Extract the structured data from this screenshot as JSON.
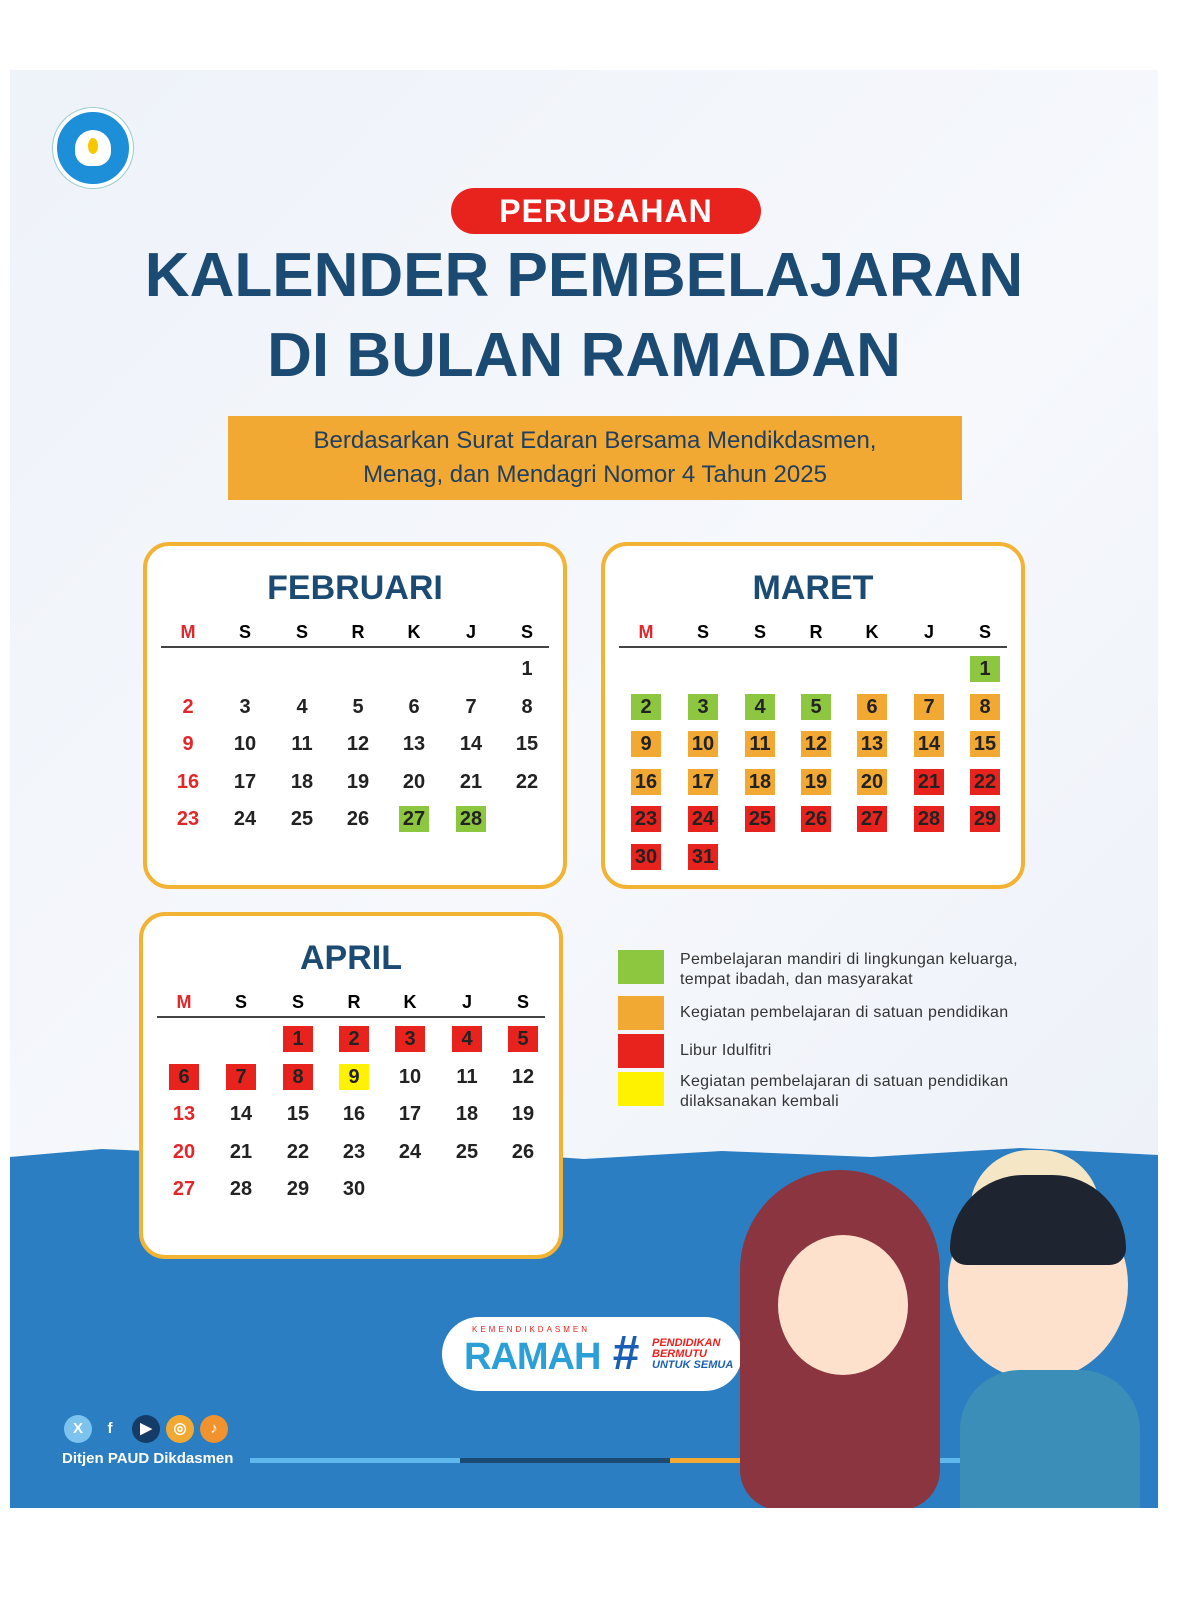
{
  "header": {
    "badge": "PERUBAHAN",
    "title_line1": "KALENDER PEMBELAJARAN",
    "title_line2": "DI BULAN RAMADAN",
    "subtitle_line1": "Berdasarkan Surat Edaran Bersama Mendikdasmen,",
    "subtitle_line2": "Menag, dan Mendagri Nomor 4 Tahun 2025"
  },
  "weekdays": [
    "M",
    "S",
    "S",
    "R",
    "K",
    "J",
    "S"
  ],
  "colors": {
    "green": "#8dc63f",
    "orange": "#f2a933",
    "red": "#e8231e",
    "yellow": "#fff200",
    "title": "#1b4a72",
    "border": "#f2b234",
    "blue": "#2b7ec1"
  },
  "months": [
    {
      "name": "FEBRUARI",
      "weeks": [
        [
          null,
          null,
          null,
          null,
          null,
          null,
          1
        ],
        [
          2,
          3,
          4,
          5,
          6,
          7,
          8
        ],
        [
          9,
          10,
          11,
          12,
          13,
          14,
          15
        ],
        [
          16,
          17,
          18,
          19,
          20,
          21,
          22
        ],
        [
          23,
          24,
          25,
          26,
          27,
          28,
          null
        ]
      ],
      "marks": {
        "27": "green",
        "28": "green"
      }
    },
    {
      "name": "MARET",
      "weeks": [
        [
          null,
          null,
          null,
          null,
          null,
          null,
          1
        ],
        [
          2,
          3,
          4,
          5,
          6,
          7,
          8
        ],
        [
          9,
          10,
          11,
          12,
          13,
          14,
          15
        ],
        [
          16,
          17,
          18,
          19,
          20,
          21,
          22
        ],
        [
          23,
          24,
          25,
          26,
          27,
          28,
          29
        ],
        [
          30,
          31,
          null,
          null,
          null,
          null,
          null
        ]
      ],
      "marks": {
        "1": "green",
        "2": "green",
        "3": "green",
        "4": "green",
        "5": "green",
        "6": "orange",
        "7": "orange",
        "8": "orange",
        "9": "orange",
        "10": "orange",
        "11": "orange",
        "12": "orange",
        "13": "orange",
        "14": "orange",
        "15": "orange",
        "16": "orange",
        "17": "orange",
        "18": "orange",
        "19": "orange",
        "20": "orange",
        "21": "red",
        "22": "red",
        "23": "red",
        "24": "red",
        "25": "red",
        "26": "red",
        "27": "red",
        "28": "red",
        "29": "red",
        "30": "red",
        "31": "red"
      }
    },
    {
      "name": "APRIL",
      "weeks": [
        [
          null,
          null,
          1,
          2,
          3,
          4,
          5
        ],
        [
          6,
          7,
          8,
          9,
          10,
          11,
          12
        ],
        [
          13,
          14,
          15,
          16,
          17,
          18,
          19
        ],
        [
          20,
          21,
          22,
          23,
          24,
          25,
          26
        ],
        [
          27,
          28,
          29,
          30,
          null,
          null,
          null
        ]
      ],
      "marks": {
        "1": "red",
        "2": "red",
        "3": "red",
        "4": "red",
        "5": "red",
        "6": "red",
        "7": "red",
        "8": "red",
        "9": "yellow"
      }
    }
  ],
  "legend": [
    {
      "color": "green",
      "line1": "Pembelajaran mandiri di lingkungan keluarga,",
      "line2": "tempat ibadah, dan masyarakat"
    },
    {
      "color": "orange",
      "line1": "Kegiatan pembelajaran di satuan pendidikan",
      "line2": ""
    },
    {
      "color": "red",
      "line1": "Libur Idulfitri",
      "line2": ""
    },
    {
      "color": "yellow",
      "line1": "Kegiatan pembelajaran di satuan pendidikan",
      "line2": "dilaksanakan kembali"
    }
  ],
  "footer": {
    "ramah_small": "KEMENDIKDASMEN",
    "ramah": "RAMAH",
    "hash": "#",
    "tag1": "PENDIDIKAN",
    "tag2": "BERMUTU",
    "tag3": "UNTUK SEMUA",
    "social_account": "Ditjen PAUD Dikdasmen",
    "social_icons": [
      "x-icon",
      "facebook-icon",
      "youtube-icon",
      "instagram-icon",
      "tiktok-icon"
    ]
  }
}
